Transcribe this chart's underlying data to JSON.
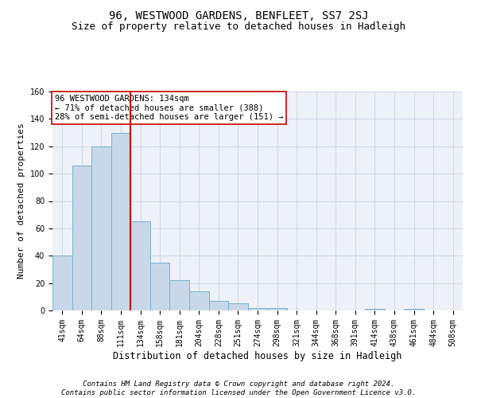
{
  "title": "96, WESTWOOD GARDENS, BENFLEET, SS7 2SJ",
  "subtitle": "Size of property relative to detached houses in Hadleigh",
  "xlabel": "Distribution of detached houses by size in Hadleigh",
  "ylabel": "Number of detached properties",
  "bar_labels": [
    "41sqm",
    "64sqm",
    "88sqm",
    "111sqm",
    "134sqm",
    "158sqm",
    "181sqm",
    "204sqm",
    "228sqm",
    "251sqm",
    "274sqm",
    "298sqm",
    "321sqm",
    "344sqm",
    "368sqm",
    "391sqm",
    "414sqm",
    "438sqm",
    "461sqm",
    "484sqm",
    "508sqm"
  ],
  "bar_values": [
    40,
    106,
    120,
    130,
    65,
    35,
    22,
    14,
    7,
    5,
    2,
    2,
    0,
    0,
    0,
    0,
    1,
    0,
    1,
    0,
    0
  ],
  "bar_color": "#c8d8e8",
  "bar_edge_color": "#7ab0cc",
  "vline_color": "#cc0000",
  "annotation_box_text": "96 WESTWOOD GARDENS: 134sqm\n← 71% of detached houses are smaller (388)\n28% of semi-detached houses are larger (151) →",
  "annotation_box_color": "#ffffff",
  "annotation_box_edge_color": "#cc0000",
  "ylim": [
    0,
    160
  ],
  "yticks": [
    0,
    20,
    40,
    60,
    80,
    100,
    120,
    140,
    160
  ],
  "grid_color": "#d0d8e8",
  "bg_color": "#eef2f8",
  "footer_text": "Contains HM Land Registry data © Crown copyright and database right 2024.\nContains public sector information licensed under the Open Government Licence v3.0.",
  "title_fontsize": 10,
  "subtitle_fontsize": 9,
  "xlabel_fontsize": 8.5,
  "ylabel_fontsize": 8,
  "tick_fontsize": 7,
  "annotation_fontsize": 7.5,
  "footer_fontsize": 6.5
}
